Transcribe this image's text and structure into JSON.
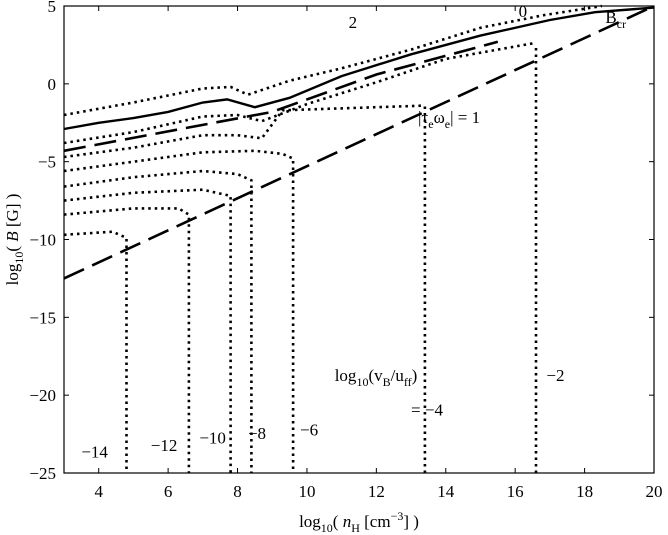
{
  "chart_data": {
    "type": "line",
    "title": "",
    "xlabel": "log10( nH [cm^-3] )",
    "ylabel": "log10( B [G] )",
    "xlim": [
      3,
      20
    ],
    "ylim": [
      -25,
      5
    ],
    "grid": false,
    "legend": "none",
    "x_ticks": [
      "4",
      "6",
      "8",
      "10",
      "12",
      "14",
      "16",
      "18",
      "20"
    ],
    "y_ticks": [
      "5",
      "0",
      "-5",
      "-10",
      "-15",
      "-20",
      "-25"
    ],
    "series": [
      {
        "style": "solid",
        "label": "0",
        "x": [
          3.0,
          4.0,
          5.0,
          6.0,
          7.0,
          7.7,
          8.5,
          9.5,
          11.0,
          13.0,
          15.0,
          17.0,
          18.3,
          20.0
        ],
        "y": [
          -2.9,
          -2.5,
          -2.2,
          -1.8,
          -1.2,
          -1.0,
          -1.5,
          -0.9,
          0.5,
          1.9,
          3.1,
          4.1,
          4.6,
          4.9
        ]
      },
      {
        "style": "dotted",
        "label": "2",
        "x": [
          3.0,
          5.0,
          7.0,
          7.8,
          8.3,
          9.5,
          11.0,
          13.0,
          15.0,
          16.8,
          18.5
        ],
        "y": [
          -2.0,
          -1.2,
          -0.3,
          -0.2,
          -0.7,
          0.2,
          1.0,
          2.2,
          3.6,
          4.4,
          5.0
        ]
      },
      {
        "style": "dotted",
        "x": [
          3.0,
          5.0,
          7.0,
          8.0,
          8.7,
          10.0,
          12.0,
          14.0,
          16.5
        ],
        "y": [
          -3.8,
          -3.1,
          -2.1,
          -2.0,
          -2.4,
          -1.3,
          0.1,
          1.6,
          2.6
        ]
      },
      {
        "style": "dotted",
        "x": [
          3.0,
          5.0,
          7.0,
          8.0,
          8.7,
          9.3,
          13.4
        ],
        "y": [
          -4.7,
          -4.1,
          -3.3,
          -3.3,
          -3.5,
          -1.7,
          -1.4
        ]
      },
      {
        "style": "dotted",
        "label": "-2",
        "x": [
          16.6,
          16.6
        ],
        "y": [
          -25.0,
          2.4
        ]
      },
      {
        "style": "dotted",
        "label": "-4",
        "x": [
          13.4,
          13.4
        ],
        "y": [
          -25.0,
          -1.4
        ]
      },
      {
        "style": "dotted",
        "label": "-6",
        "x": [
          3.0,
          5.0,
          7.0,
          8.5,
          9.3,
          9.6,
          9.6
        ],
        "y": [
          -5.6,
          -5.0,
          -4.4,
          -4.3,
          -4.5,
          -4.8,
          -25.0
        ]
      },
      {
        "style": "dotted",
        "label": "-8",
        "x": [
          3.0,
          5.0,
          7.0,
          8.0,
          8.4,
          8.4
        ],
        "y": [
          -6.6,
          -6.0,
          -5.6,
          -5.8,
          -6.2,
          -25.0
        ]
      },
      {
        "style": "dotted",
        "label": "-10",
        "x": [
          3.0,
          5.0,
          7.0,
          7.8,
          7.8
        ],
        "y": [
          -7.5,
          -7.0,
          -6.8,
          -7.2,
          -25.0
        ]
      },
      {
        "style": "dotted",
        "label": "-12",
        "x": [
          3.0,
          5.0,
          6.3,
          6.6,
          6.6
        ],
        "y": [
          -8.4,
          -8.0,
          -8.0,
          -8.4,
          -25.0
        ]
      },
      {
        "style": "dotted",
        "label": "-14",
        "x": [
          3.0,
          4.4,
          4.8,
          4.8
        ],
        "y": [
          -9.7,
          -9.5,
          -9.9,
          -25.0
        ]
      },
      {
        "style": "dashed",
        "label": "B_cr",
        "x": [
          3.0,
          20.0
        ],
        "y": [
          -12.5,
          5.0
        ]
      },
      {
        "style": "dashed",
        "label": "|τ_e ω_e| = 1",
        "x": [
          3.0,
          9.0,
          12.0,
          15.5
        ],
        "y": [
          -4.3,
          -1.8,
          0.6,
          2.7
        ]
      }
    ],
    "annotations": [
      {
        "text": "2",
        "x": 11.2,
        "y": 3.6
      },
      {
        "text": "0",
        "x": 16.1,
        "y": 4.3
      },
      {
        "text": "B",
        "sub": "cr",
        "x": 18.6,
        "y": 3.9
      },
      {
        "text": "|τ",
        "sub": "e",
        "mid": "ω",
        "sub2": "e",
        "tail": "| = 1",
        "x": 13.2,
        "y": -2.5
      },
      {
        "text": "log",
        "sub": "10",
        "tail": "(v",
        "sub2": "B",
        "tail2": "/u",
        "sub3": "ff",
        "tail3": ")",
        "x": 10.8,
        "y": -19.1
      },
      {
        "text": "= −4",
        "x": 13.0,
        "y": -21.3
      },
      {
        "text": "−2",
        "x": 16.9,
        "y": -19.1
      },
      {
        "text": "−6",
        "x": 9.8,
        "y": -22.6
      },
      {
        "text": "−8",
        "x": 8.3,
        "y": -22.8
      },
      {
        "text": "−10",
        "x": 6.9,
        "y": -23.1
      },
      {
        "text": "−12",
        "x": 5.5,
        "y": -23.6
      },
      {
        "text": "−14",
        "x": 3.5,
        "y": -24.0
      }
    ]
  }
}
